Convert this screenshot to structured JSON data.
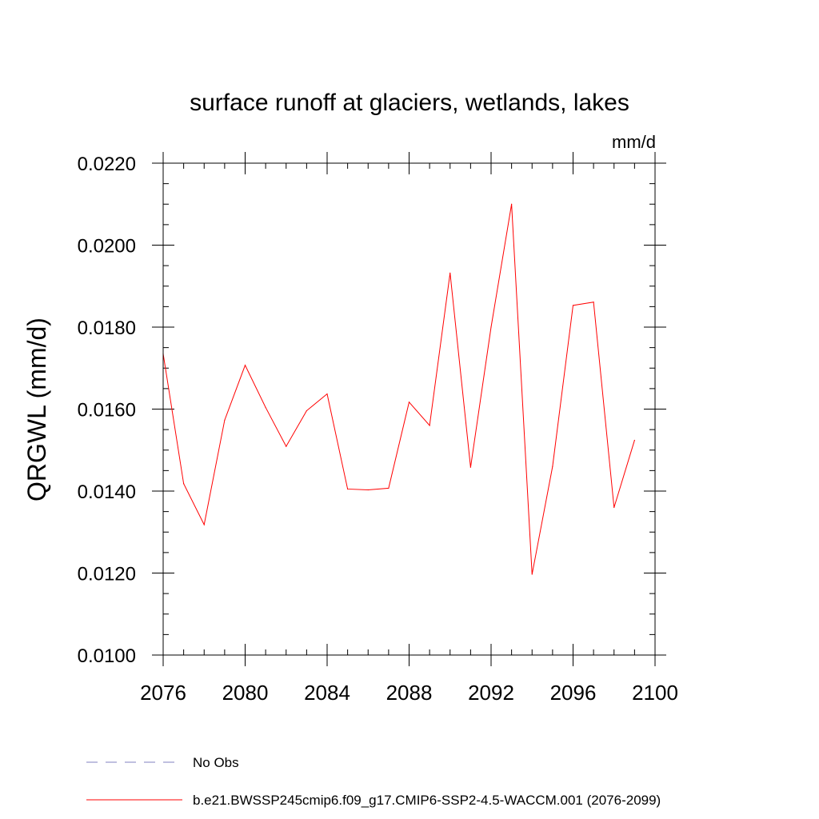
{
  "chart_data": {
    "type": "line",
    "title": "surface runoff at glaciers, wetlands, lakes",
    "units_label": "mm/d",
    "ylabel": "QRGWL  (mm/d)",
    "xlabel": "",
    "xlim": [
      2076,
      2100
    ],
    "ylim": [
      0.01,
      0.022
    ],
    "x_ticks": [
      2076,
      2080,
      2084,
      2088,
      2092,
      2096,
      2100
    ],
    "x_tick_labels": [
      "2076",
      "2080",
      "2084",
      "2088",
      "2092",
      "2096",
      "2100"
    ],
    "y_ticks": [
      0.01,
      0.012,
      0.014,
      0.016,
      0.018,
      0.02,
      0.022
    ],
    "y_tick_labels": [
      "0.0100",
      "0.0120",
      "0.0140",
      "0.0160",
      "0.0180",
      "0.0200",
      "0.0220"
    ],
    "x_minor_step": 1,
    "y_minor_step": 0.0005,
    "grid": false,
    "legend_position": "bottom",
    "series": [
      {
        "name": "b.e21.BWSSP245cmip6.f09_g17.CMIP6-SSP2-4.5-WACCM.001 (2076-2099)",
        "color": "#ff0000",
        "style": "solid",
        "x": [
          2076,
          2077,
          2078,
          2079,
          2080,
          2081,
          2082,
          2083,
          2084,
          2085,
          2086,
          2087,
          2088,
          2089,
          2090,
          2091,
          2092,
          2093,
          2094,
          2095,
          2096,
          2097,
          2098,
          2099
        ],
        "y": [
          0.01735,
          0.01418,
          0.01318,
          0.01573,
          0.01707,
          0.01604,
          0.01509,
          0.01596,
          0.01637,
          0.01405,
          0.01403,
          0.01407,
          0.01617,
          0.0156,
          0.01932,
          0.01458,
          0.018,
          0.021,
          0.01197,
          0.0146,
          0.01853,
          0.01861,
          0.0136,
          0.01524
        ]
      }
    ],
    "legend": [
      {
        "label": "No Obs",
        "color": "#8080c0",
        "style": "dashed"
      },
      {
        "label": "b.e21.BWSSP245cmip6.f09_g17.CMIP6-SSP2-4.5-WACCM.001 (2076-2099)",
        "color": "#ff0000",
        "style": "solid"
      }
    ]
  }
}
